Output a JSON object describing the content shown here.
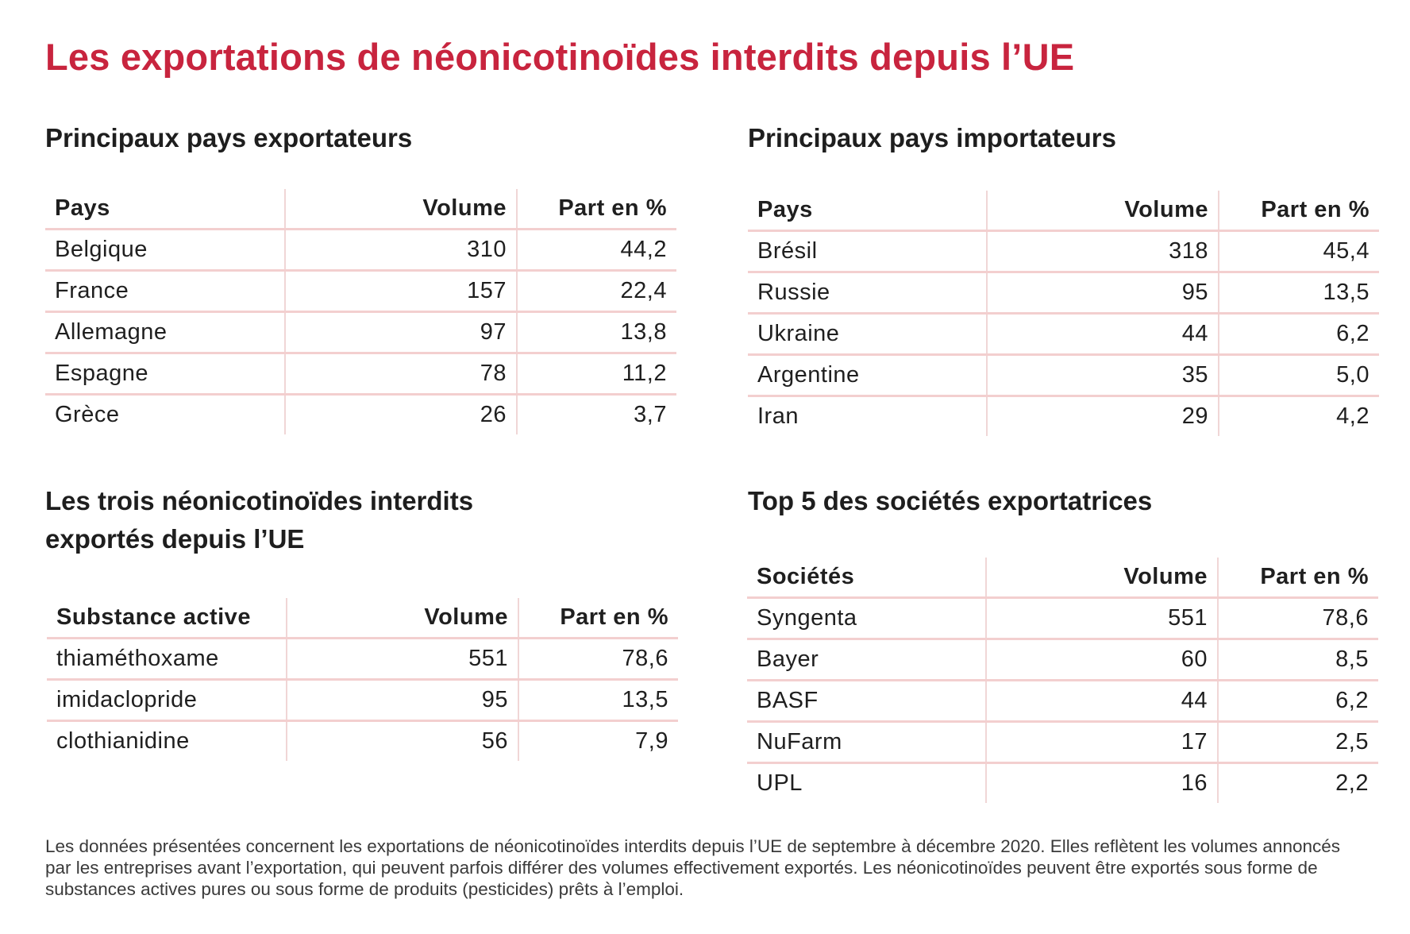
{
  "title": "Les exportations de néonicotinoïdes interdits depuis l’UE",
  "exporters": {
    "title": "Principaux pays exportateurs",
    "headers": [
      "Pays",
      "Volume",
      "Part en %"
    ],
    "rows": [
      [
        "Belgique",
        "310",
        "44,2"
      ],
      [
        "France",
        "157",
        "22,4"
      ],
      [
        "Allemagne",
        "97",
        "13,8"
      ],
      [
        "Espagne",
        "78",
        "11,2"
      ],
      [
        "Grèce",
        "26",
        "3,7"
      ]
    ]
  },
  "importers": {
    "title": "Principaux pays importateurs",
    "headers": [
      "Pays",
      "Volume",
      "Part en %"
    ],
    "rows": [
      [
        "Brésil",
        "318",
        "45,4"
      ],
      [
        "Russie",
        "95",
        "13,5"
      ],
      [
        "Ukraine",
        "44",
        "6,2"
      ],
      [
        "Argentine",
        "35",
        "5,0"
      ],
      [
        "Iran",
        "29",
        "4,2"
      ]
    ]
  },
  "substances": {
    "title_line1": "Les trois néonicotinoïdes interdits",
    "title_line2": "exportés depuis l’UE",
    "headers": [
      "Substance active",
      "Volume",
      "Part en %"
    ],
    "rows": [
      [
        "thiaméthoxame",
        "551",
        "78,6"
      ],
      [
        "imidaclopride",
        "95",
        "13,5"
      ],
      [
        "clothianidine",
        "56",
        "7,9"
      ]
    ]
  },
  "companies": {
    "title": "Top 5 des sociétés exportatrices",
    "headers": [
      "Sociétés",
      "Volume",
      "Part en %"
    ],
    "rows": [
      [
        "Syngenta",
        "551",
        "78,6"
      ],
      [
        "Bayer",
        "60",
        "8,5"
      ],
      [
        "BASF",
        "44",
        "6,2"
      ],
      [
        "NuFarm",
        "17",
        "2,5"
      ],
      [
        "UPL",
        "16",
        "2,2"
      ]
    ]
  },
  "footnote": "Les données présentées concernent les exportations de néonicotinoïdes interdits depuis l’UE de septembre à décembre 2020. Elles reflètent les volumes annoncés par les entreprises avant l’exportation, qui peuvent parfois différer des volumes effectivement exportés. Les néonicotinoïdes peuvent être exportés sous forme de substances actives pures ou sous forme de produits (pesticides) prêts à l’emploi."
}
